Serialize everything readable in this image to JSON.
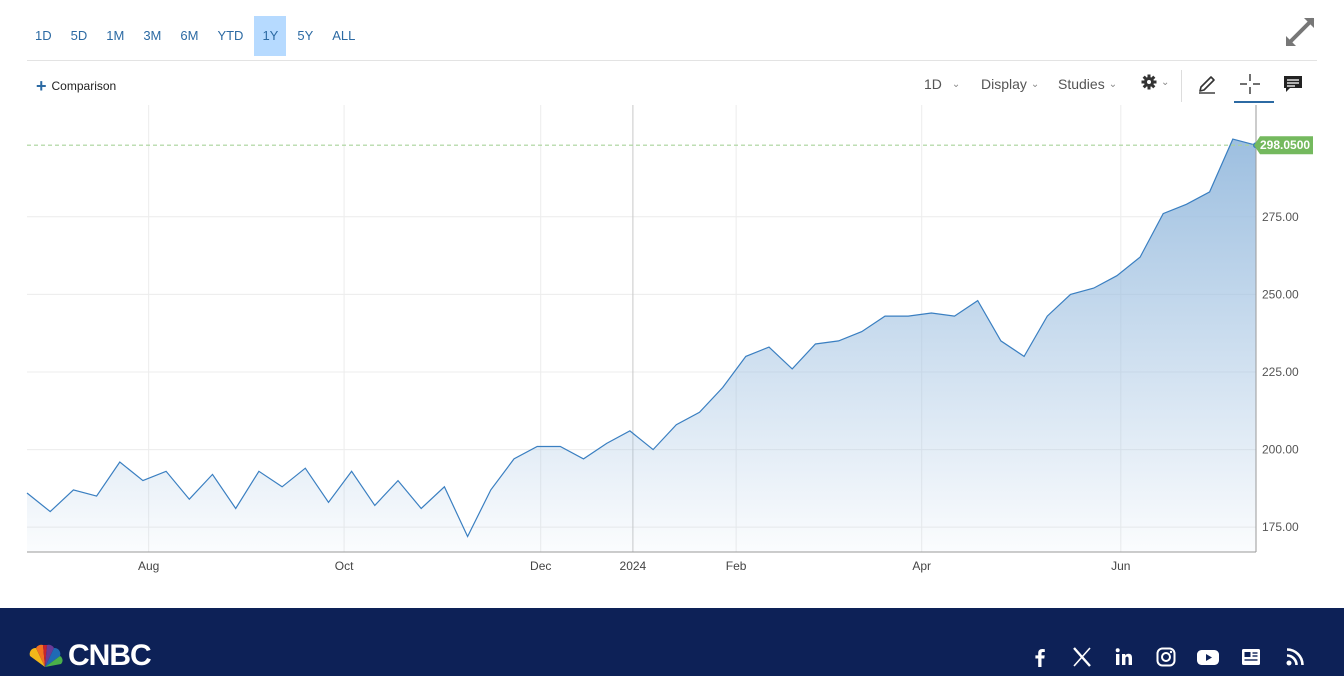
{
  "ranges": [
    "1D",
    "5D",
    "1M",
    "3M",
    "6M",
    "YTD",
    "1Y",
    "5Y",
    "ALL"
  ],
  "active_range": "1Y",
  "toolbar": {
    "comparison_label": "Comparison",
    "interval_label": "1D",
    "display_label": "Display",
    "studies_label": "Studies"
  },
  "brand": {
    "logo_text": "CNBC"
  },
  "colors": {
    "accent": "#2c6aa3",
    "line": "#3a7fc1",
    "area_top": "#9dbfe0",
    "price_tag": "#74b95e",
    "footer_bg": "#0d2157"
  },
  "icons": [
    "expand-icon",
    "pencil-icon",
    "crosshair-icon",
    "comment-icon",
    "gear-icon",
    "facebook-icon",
    "x-icon",
    "linkedin-icon",
    "instagram-icon",
    "youtube-icon",
    "news-icon",
    "rss-icon"
  ],
  "chart_data": {
    "type": "area",
    "ylim": [
      167,
      311
    ],
    "yticks": [
      "175.00",
      "200.00",
      "225.00",
      "250.00",
      "275.00"
    ],
    "xtick_labels": [
      "Aug",
      "Oct",
      "Dec",
      "2024",
      "Feb",
      "Apr",
      "Jun"
    ],
    "last_price_label": "298.0500",
    "last_price": 298.05,
    "grid": true,
    "x": [
      "Jul 7",
      "Jul 14",
      "Jul 21",
      "Jul 28",
      "Aug 4",
      "Aug 11",
      "Aug 18",
      "Aug 25",
      "Sep 1",
      "Sep 8",
      "Sep 15",
      "Sep 22",
      "Sep 29",
      "Oct 6",
      "Oct 13",
      "Oct 20",
      "Oct 27",
      "Nov 3",
      "Nov 10",
      "Nov 17",
      "Nov 24",
      "Dec 1",
      "Dec 8",
      "Dec 15",
      "Dec 22",
      "Dec 29",
      "Jan 5",
      "Jan 12",
      "Jan 19",
      "Jan 26",
      "Feb 2",
      "Feb 9",
      "Feb 16",
      "Feb 23",
      "Mar 1",
      "Mar 8",
      "Mar 15",
      "Mar 22",
      "Mar 29",
      "Apr 5",
      "Apr 12",
      "Apr 19",
      "Apr 26",
      "May 3",
      "May 10",
      "May 17",
      "May 24",
      "May 31",
      "Jun 7",
      "Jun 14",
      "Jun 21",
      "Jun 28",
      "Jul 5",
      "Jul 12"
    ],
    "series": [
      {
        "values": [
          186,
          180,
          187,
          185,
          196,
          190,
          193,
          184,
          192,
          181,
          193,
          188,
          194,
          183,
          193,
          182,
          190,
          181,
          188,
          172,
          187,
          197,
          201,
          201,
          197,
          202,
          206,
          200,
          208,
          212,
          220,
          230,
          233,
          226,
          234,
          235,
          238,
          243,
          243,
          244,
          243,
          248,
          235,
          230,
          243,
          250,
          252,
          256,
          262,
          276,
          279,
          283,
          300,
          298.05
        ]
      }
    ]
  }
}
